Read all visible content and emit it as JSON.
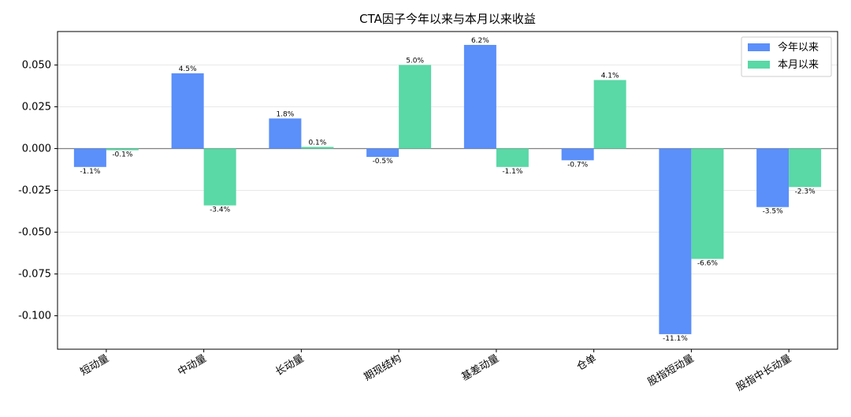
{
  "chart_data": {
    "type": "bar",
    "title": "CTA因子今年以来与本月以来收益",
    "categories": [
      "短动量",
      "中动量",
      "长动量",
      "期现结构",
      "基差动量",
      "仓单",
      "股指短动量",
      "股指中长动量"
    ],
    "series": [
      {
        "name": "今年以来",
        "color": "#5b8ff9",
        "values": [
          -0.011,
          0.045,
          0.018,
          -0.005,
          0.062,
          -0.007,
          -0.111,
          -0.035
        ],
        "labels": [
          "-1.1%",
          "4.5%",
          "1.8%",
          "-0.5%",
          "6.2%",
          "-0.7%",
          "-11.1%",
          "-3.5%"
        ]
      },
      {
        "name": "本月以来",
        "color": "#5ad8a6",
        "values": [
          -0.001,
          -0.034,
          0.001,
          0.05,
          -0.011,
          0.041,
          -0.066,
          -0.023
        ],
        "labels": [
          "-0.1%",
          "-3.4%",
          "0.1%",
          "5.0%",
          "-1.1%",
          "4.1%",
          "-6.6%",
          "-2.3%"
        ]
      }
    ],
    "yticks": [
      "0.050",
      "0.025",
      "0.000",
      "-0.025",
      "-0.050",
      "-0.075",
      "-0.100"
    ],
    "ytick_values": [
      0.05,
      0.025,
      0.0,
      -0.025,
      -0.05,
      -0.075,
      -0.1
    ],
    "ylim": [
      -0.12,
      0.07
    ],
    "grid": true,
    "legend_position": "top-right",
    "zero_line": true
  }
}
